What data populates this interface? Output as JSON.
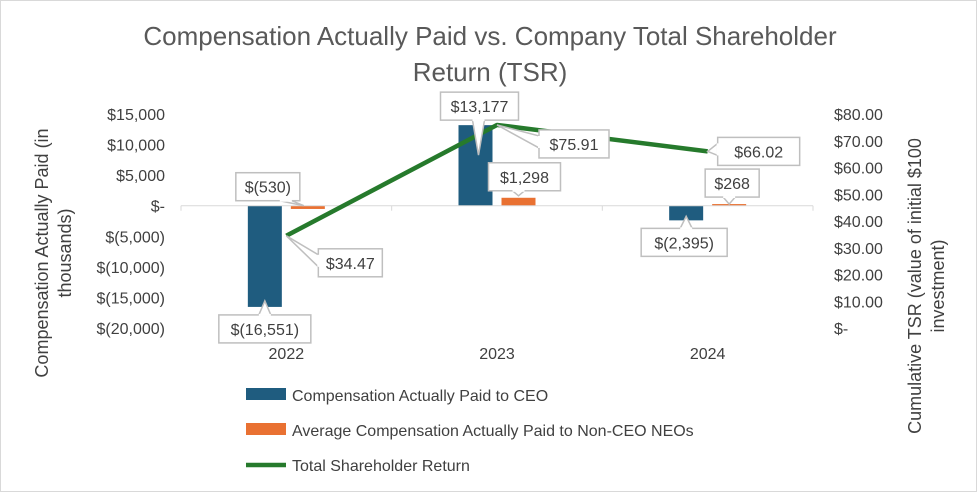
{
  "chart_data": {
    "type": "bar",
    "title": "Compensation Actually Paid vs. Company Total Shareholder Return (TSR)",
    "title_lines": [
      "Compensation Actually Paid vs. Company Total Shareholder",
      "Return (TSR)"
    ],
    "ylabel_lines": [
      "Compensation Actually Paid (in",
      "thousands)"
    ],
    "y2label_lines": [
      "Cumulative TSR (value of initial $100",
      "investment)"
    ],
    "categories": [
      "2022",
      "2023",
      "2024"
    ],
    "ylim": [
      -20000,
      15000
    ],
    "y_ticks": [
      15000,
      10000,
      5000,
      0,
      -5000,
      -10000,
      -15000,
      -20000
    ],
    "y_tick_labels": [
      "$15,000",
      "$10,000",
      "$5,000",
      "$-",
      "$(5,000)",
      "$(10,000)",
      "$(15,000)",
      "$(20,000)"
    ],
    "y2lim": [
      0,
      80
    ],
    "y2_ticks": [
      80,
      70,
      60,
      50,
      40,
      30,
      20,
      10,
      0
    ],
    "y2_tick_labels": [
      "$80.00",
      "$70.00",
      "$60.00",
      "$50.00",
      "$40.00",
      "$30.00",
      "$20.00",
      "$10.00",
      "$-"
    ],
    "series": [
      {
        "name": "Compensation Actually Paid to CEO",
        "kind": "bar",
        "axis": "left",
        "color": "#1f5c7f",
        "values": [
          -16551,
          13177,
          -2395
        ],
        "labels": [
          "$(16,551)",
          "$13,177",
          "$(2,395)"
        ]
      },
      {
        "name": "Average Compensation Actually Paid to Non-CEO NEOs",
        "kind": "bar",
        "axis": "left",
        "color": "#e97132",
        "values": [
          -530,
          1298,
          268
        ],
        "labels": [
          "$(530)",
          "$1,298",
          "$268"
        ]
      },
      {
        "name": "Total Shareholder Return",
        "kind": "line",
        "axis": "right",
        "color": "#267a2c",
        "values": [
          34.47,
          75.91,
          66.02
        ],
        "labels": [
          "$34.47",
          "$75.91",
          "$66.02"
        ]
      }
    ],
    "grid": false,
    "legend_position": "bottom"
  }
}
